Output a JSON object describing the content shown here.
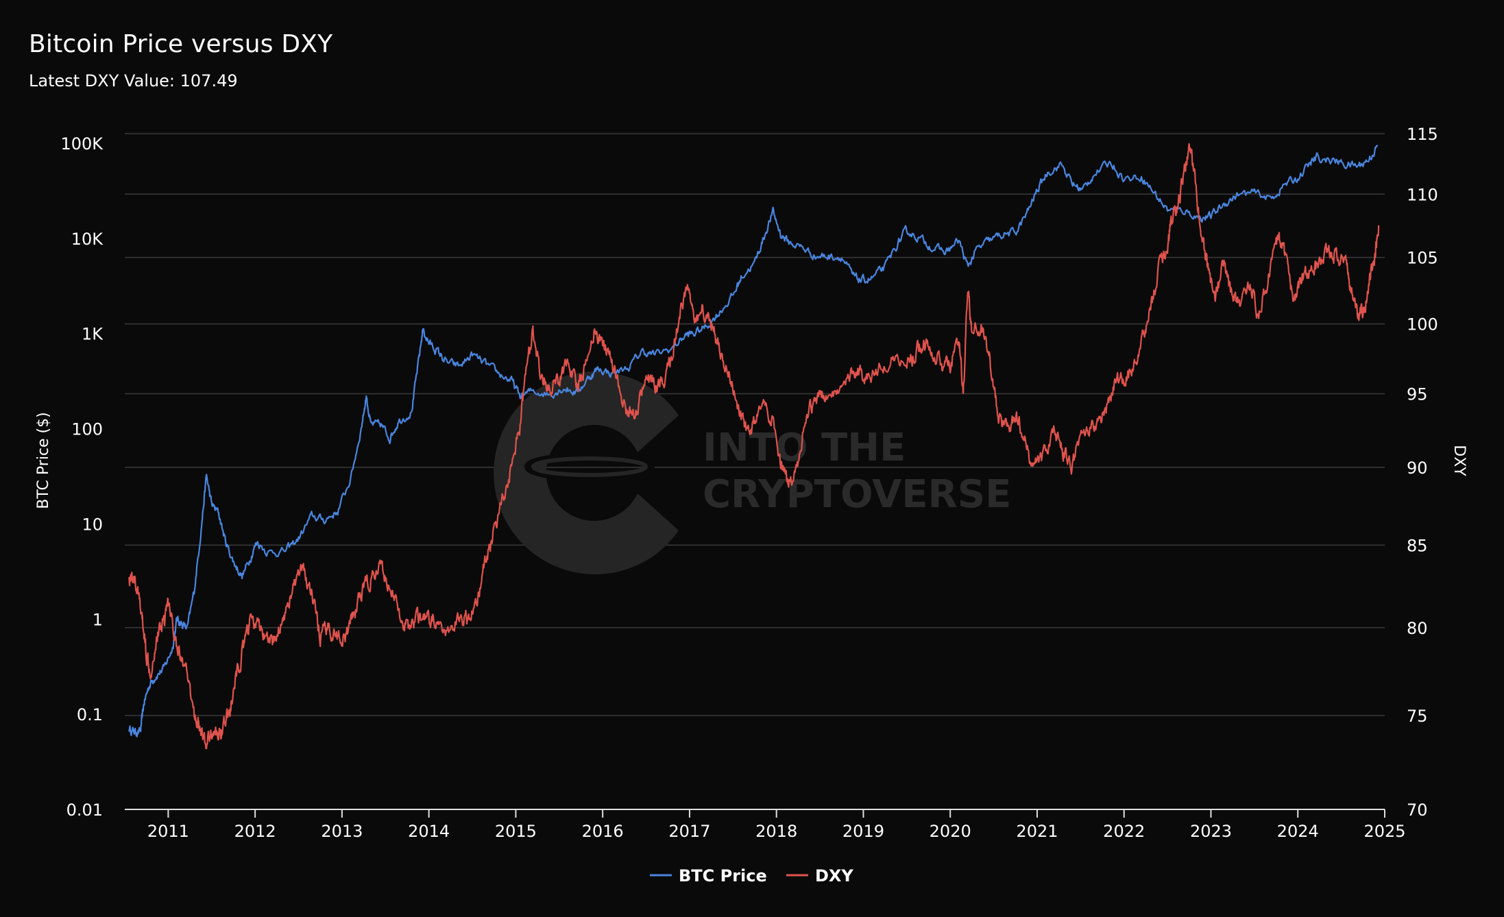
{
  "chart_data": {
    "type": "line",
    "title": "Bitcoin Price versus DXY",
    "subtitle": "Latest DXY Value: 107.49",
    "watermark": [
      "INTO THE",
      "CRYPTOVERSE"
    ],
    "y_left": {
      "label": "BTC Price ($)",
      "scale": "log",
      "range": [
        0.01,
        100000
      ],
      "ticks": [
        {
          "value": 0.01,
          "label": "0.01"
        },
        {
          "value": 0.1,
          "label": "0.1"
        },
        {
          "value": 1,
          "label": "1"
        },
        {
          "value": 10,
          "label": "10"
        },
        {
          "value": 100,
          "label": "100"
        },
        {
          "value": 1000,
          "label": "1K"
        },
        {
          "value": 10000,
          "label": "10K"
        },
        {
          "value": 100000,
          "label": "100K"
        }
      ]
    },
    "y_right": {
      "label": "DXY",
      "scale": "log",
      "range": [
        70,
        115
      ],
      "ticks": [
        {
          "value": 70,
          "label": "70"
        },
        {
          "value": 75,
          "label": "75"
        },
        {
          "value": 80,
          "label": "80"
        },
        {
          "value": 85,
          "label": "85"
        },
        {
          "value": 90,
          "label": "90"
        },
        {
          "value": 95,
          "label": "95"
        },
        {
          "value": 100,
          "label": "100"
        },
        {
          "value": 105,
          "label": "105"
        },
        {
          "value": 110,
          "label": "110"
        },
        {
          "value": 115,
          "label": "115"
        }
      ]
    },
    "x_axis": {
      "range": [
        2010.5,
        2025.0
      ],
      "ticks": [
        "2011",
        "2012",
        "2013",
        "2014",
        "2015",
        "2016",
        "2017",
        "2018",
        "2019",
        "2020",
        "2021",
        "2022",
        "2023",
        "2024",
        "2025"
      ]
    },
    "grid": true,
    "legend_position": "bottom-center",
    "colors": {
      "background": "#0a0a0a",
      "grid": "#3a3a3a",
      "btc": "#4a86e0",
      "dxy": "#e0534d",
      "text": "#ffffff"
    },
    "series": [
      {
        "name": "BTC Price",
        "axis": "left",
        "color": "#4a86e0",
        "points": [
          [
            2010.55,
            0.07
          ],
          [
            2010.62,
            0.065
          ],
          [
            2010.68,
            0.065
          ],
          [
            2010.72,
            0.13
          ],
          [
            2010.78,
            0.2
          ],
          [
            2010.85,
            0.25
          ],
          [
            2010.95,
            0.3
          ],
          [
            2011.05,
            0.5
          ],
          [
            2011.1,
            1.0
          ],
          [
            2011.15,
            0.9
          ],
          [
            2011.22,
            0.8
          ],
          [
            2011.3,
            2.0
          ],
          [
            2011.38,
            9.0
          ],
          [
            2011.44,
            32.0
          ],
          [
            2011.5,
            16.0
          ],
          [
            2011.58,
            13.0
          ],
          [
            2011.66,
            6.5
          ],
          [
            2011.75,
            4.0
          ],
          [
            2011.85,
            2.8
          ],
          [
            2011.95,
            4.5
          ],
          [
            2012.02,
            6.5
          ],
          [
            2012.15,
            5.0
          ],
          [
            2012.35,
            5.2
          ],
          [
            2012.5,
            7.0
          ],
          [
            2012.65,
            12.0
          ],
          [
            2012.8,
            11.0
          ],
          [
            2012.95,
            13.5
          ],
          [
            2013.1,
            30.0
          ],
          [
            2013.22,
            100.0
          ],
          [
            2013.28,
            220.0
          ],
          [
            2013.33,
            110.0
          ],
          [
            2013.45,
            110.0
          ],
          [
            2013.55,
            80.0
          ],
          [
            2013.65,
            120.0
          ],
          [
            2013.8,
            150.0
          ],
          [
            2013.88,
            500.0
          ],
          [
            2013.93,
            1100.0
          ],
          [
            2014.0,
            800.0
          ],
          [
            2014.1,
            650.0
          ],
          [
            2014.2,
            500.0
          ],
          [
            2014.35,
            450.0
          ],
          [
            2014.5,
            600.0
          ],
          [
            2014.65,
            480.0
          ],
          [
            2014.8,
            380.0
          ],
          [
            2014.95,
            320.0
          ],
          [
            2015.05,
            220.0
          ],
          [
            2015.2,
            250.0
          ],
          [
            2015.4,
            230.0
          ],
          [
            2015.55,
            270.0
          ],
          [
            2015.7,
            240.0
          ],
          [
            2015.85,
            350.0
          ],
          [
            2015.95,
            430.0
          ],
          [
            2016.1,
            380.0
          ],
          [
            2016.3,
            440.0
          ],
          [
            2016.45,
            650.0
          ],
          [
            2016.6,
            600.0
          ],
          [
            2016.8,
            700.0
          ],
          [
            2016.95,
            960.0
          ],
          [
            2017.05,
            1000.0
          ],
          [
            2017.2,
            1200.0
          ],
          [
            2017.35,
            1700.0
          ],
          [
            2017.5,
            2500.0
          ],
          [
            2017.6,
            4000.0
          ],
          [
            2017.75,
            5500.0
          ],
          [
            2017.85,
            10000.0
          ],
          [
            2017.96,
            19000.0
          ],
          [
            2018.05,
            11000.0
          ],
          [
            2018.15,
            9000.0
          ],
          [
            2018.3,
            8000.0
          ],
          [
            2018.45,
            6500.0
          ],
          [
            2018.6,
            6500.0
          ],
          [
            2018.75,
            6400.0
          ],
          [
            2018.88,
            4000.0
          ],
          [
            2018.98,
            3600.0
          ],
          [
            2019.1,
            3800.0
          ],
          [
            2019.25,
            5000.0
          ],
          [
            2019.4,
            9000.0
          ],
          [
            2019.5,
            12000.0
          ],
          [
            2019.65,
            10000.0
          ],
          [
            2019.8,
            8000.0
          ],
          [
            2019.95,
            7200.0
          ],
          [
            2020.1,
            9500.0
          ],
          [
            2020.2,
            5000.0
          ],
          [
            2020.3,
            7500.0
          ],
          [
            2020.45,
            9500.0
          ],
          [
            2020.6,
            11000.0
          ],
          [
            2020.75,
            11500.0
          ],
          [
            2020.88,
            18000.0
          ],
          [
            2021.0,
            32000.0
          ],
          [
            2021.12,
            50000.0
          ],
          [
            2021.28,
            60000.0
          ],
          [
            2021.4,
            38000.0
          ],
          [
            2021.52,
            32000.0
          ],
          [
            2021.65,
            47000.0
          ],
          [
            2021.85,
            63000.0
          ],
          [
            2022.0,
            42000.0
          ],
          [
            2022.2,
            45000.0
          ],
          [
            2022.35,
            30000.0
          ],
          [
            2022.5,
            20000.0
          ],
          [
            2022.7,
            19500.0
          ],
          [
            2022.87,
            16500.0
          ],
          [
            2023.0,
            17000.0
          ],
          [
            2023.15,
            23000.0
          ],
          [
            2023.3,
            28500.0
          ],
          [
            2023.5,
            30000.0
          ],
          [
            2023.7,
            26000.0
          ],
          [
            2023.85,
            37000.0
          ],
          [
            2024.0,
            43000.0
          ],
          [
            2024.15,
            62000.0
          ],
          [
            2024.22,
            70000.0
          ],
          [
            2024.4,
            66000.0
          ],
          [
            2024.55,
            60000.0
          ],
          [
            2024.7,
            58000.0
          ],
          [
            2024.82,
            68000.0
          ],
          [
            2024.92,
            95000.0
          ]
        ]
      },
      {
        "name": "DXY",
        "axis": "right",
        "color": "#e0534d",
        "points": [
          [
            2010.55,
            83.0
          ],
          [
            2010.6,
            83.2
          ],
          [
            2010.65,
            82.0
          ],
          [
            2010.7,
            80.5
          ],
          [
            2010.75,
            78.5
          ],
          [
            2010.8,
            77.5
          ],
          [
            2010.87,
            79.5
          ],
          [
            2010.95,
            80.5
          ],
          [
            2011.0,
            81.5
          ],
          [
            2011.1,
            79.0
          ],
          [
            2011.2,
            77.5
          ],
          [
            2011.3,
            75.0
          ],
          [
            2011.35,
            74.5
          ],
          [
            2011.42,
            73.5
          ],
          [
            2011.5,
            74.0
          ],
          [
            2011.58,
            74.0
          ],
          [
            2011.65,
            74.5
          ],
          [
            2011.72,
            75.5
          ],
          [
            2011.8,
            77.5
          ],
          [
            2011.88,
            79.0
          ],
          [
            2011.95,
            80.5
          ],
          [
            2012.05,
            80.0
          ],
          [
            2012.15,
            79.0
          ],
          [
            2012.25,
            79.5
          ],
          [
            2012.35,
            81.0
          ],
          [
            2012.45,
            82.5
          ],
          [
            2012.55,
            83.5
          ],
          [
            2012.65,
            82.0
          ],
          [
            2012.75,
            79.5
          ],
          [
            2012.85,
            80.0
          ],
          [
            2012.95,
            79.5
          ],
          [
            2013.05,
            79.5
          ],
          [
            2013.15,
            81.0
          ],
          [
            2013.25,
            82.5
          ],
          [
            2013.35,
            83.0
          ],
          [
            2013.45,
            83.5
          ],
          [
            2013.55,
            82.5
          ],
          [
            2013.65,
            81.0
          ],
          [
            2013.75,
            80.0
          ],
          [
            2013.85,
            80.5
          ],
          [
            2013.95,
            80.5
          ],
          [
            2014.05,
            80.5
          ],
          [
            2014.2,
            79.5
          ],
          [
            2014.35,
            80.5
          ],
          [
            2014.45,
            80.5
          ],
          [
            2014.55,
            81.5
          ],
          [
            2014.65,
            84.0
          ],
          [
            2014.75,
            86.0
          ],
          [
            2014.85,
            88.0
          ],
          [
            2014.95,
            90.0
          ],
          [
            2015.05,
            93.0
          ],
          [
            2015.15,
            98.0
          ],
          [
            2015.2,
            99.5
          ],
          [
            2015.3,
            96.0
          ],
          [
            2015.4,
            95.5
          ],
          [
            2015.5,
            96.0
          ],
          [
            2015.6,
            97.5
          ],
          [
            2015.7,
            95.5
          ],
          [
            2015.8,
            97.0
          ],
          [
            2015.9,
            99.5
          ],
          [
            2016.0,
            98.5
          ],
          [
            2016.1,
            97.5
          ],
          [
            2016.2,
            95.0
          ],
          [
            2016.3,
            93.5
          ],
          [
            2016.4,
            94.0
          ],
          [
            2016.5,
            96.0
          ],
          [
            2016.6,
            95.5
          ],
          [
            2016.7,
            95.5
          ],
          [
            2016.8,
            98.0
          ],
          [
            2016.9,
            101.0
          ],
          [
            2016.97,
            103.0
          ],
          [
            2017.05,
            100.5
          ],
          [
            2017.15,
            101.0
          ],
          [
            2017.25,
            100.0
          ],
          [
            2017.35,
            98.0
          ],
          [
            2017.45,
            96.5
          ],
          [
            2017.55,
            94.0
          ],
          [
            2017.65,
            92.5
          ],
          [
            2017.75,
            93.0
          ],
          [
            2017.85,
            94.0
          ],
          [
            2017.95,
            93.0
          ],
          [
            2018.05,
            90.0
          ],
          [
            2018.12,
            89.0
          ],
          [
            2018.22,
            89.5
          ],
          [
            2018.32,
            92.5
          ],
          [
            2018.42,
            94.5
          ],
          [
            2018.55,
            95.0
          ],
          [
            2018.7,
            95.5
          ],
          [
            2018.85,
            96.5
          ],
          [
            2018.95,
            96.5
          ],
          [
            2019.05,
            96.0
          ],
          [
            2019.2,
            97.0
          ],
          [
            2019.35,
            97.5
          ],
          [
            2019.5,
            97.0
          ],
          [
            2019.6,
            98.0
          ],
          [
            2019.7,
            98.5
          ],
          [
            2019.8,
            98.0
          ],
          [
            2019.9,
            97.0
          ],
          [
            2020.0,
            97.0
          ],
          [
            2020.1,
            99.0
          ],
          [
            2020.15,
            95.0
          ],
          [
            2020.2,
            102.5
          ],
          [
            2020.25,
            99.5
          ],
          [
            2020.35,
            100.0
          ],
          [
            2020.45,
            97.5
          ],
          [
            2020.55,
            93.5
          ],
          [
            2020.65,
            92.5
          ],
          [
            2020.75,
            93.5
          ],
          [
            2020.85,
            92.0
          ],
          [
            2020.95,
            90.0
          ],
          [
            2021.05,
            90.5
          ],
          [
            2021.2,
            92.5
          ],
          [
            2021.3,
            91.0
          ],
          [
            2021.4,
            90.0
          ],
          [
            2021.5,
            92.0
          ],
          [
            2021.6,
            92.5
          ],
          [
            2021.7,
            93.0
          ],
          [
            2021.8,
            94.0
          ],
          [
            2021.9,
            96.0
          ],
          [
            2022.0,
            96.0
          ],
          [
            2022.1,
            96.5
          ],
          [
            2022.2,
            98.5
          ],
          [
            2022.3,
            101.0
          ],
          [
            2022.4,
            104.0
          ],
          [
            2022.5,
            106.0
          ],
          [
            2022.55,
            108.0
          ],
          [
            2022.62,
            109.0
          ],
          [
            2022.7,
            112.0
          ],
          [
            2022.76,
            114.0
          ],
          [
            2022.82,
            111.0
          ],
          [
            2022.9,
            106.0
          ],
          [
            2022.97,
            104.0
          ],
          [
            2023.05,
            102.0
          ],
          [
            2023.15,
            104.5
          ],
          [
            2023.25,
            102.0
          ],
          [
            2023.35,
            101.5
          ],
          [
            2023.45,
            103.0
          ],
          [
            2023.55,
            100.5
          ],
          [
            2023.65,
            103.0
          ],
          [
            2023.75,
            106.5
          ],
          [
            2023.82,
            106.0
          ],
          [
            2023.9,
            103.5
          ],
          [
            2023.97,
            101.5
          ],
          [
            2024.05,
            103.5
          ],
          [
            2024.15,
            104.0
          ],
          [
            2024.25,
            104.5
          ],
          [
            2024.35,
            105.5
          ],
          [
            2024.45,
            105.0
          ],
          [
            2024.55,
            104.5
          ],
          [
            2024.62,
            102.5
          ],
          [
            2024.7,
            100.5
          ],
          [
            2024.76,
            101.0
          ],
          [
            2024.82,
            103.0
          ],
          [
            2024.88,
            104.5
          ],
          [
            2024.93,
            107.5
          ]
        ]
      }
    ]
  }
}
